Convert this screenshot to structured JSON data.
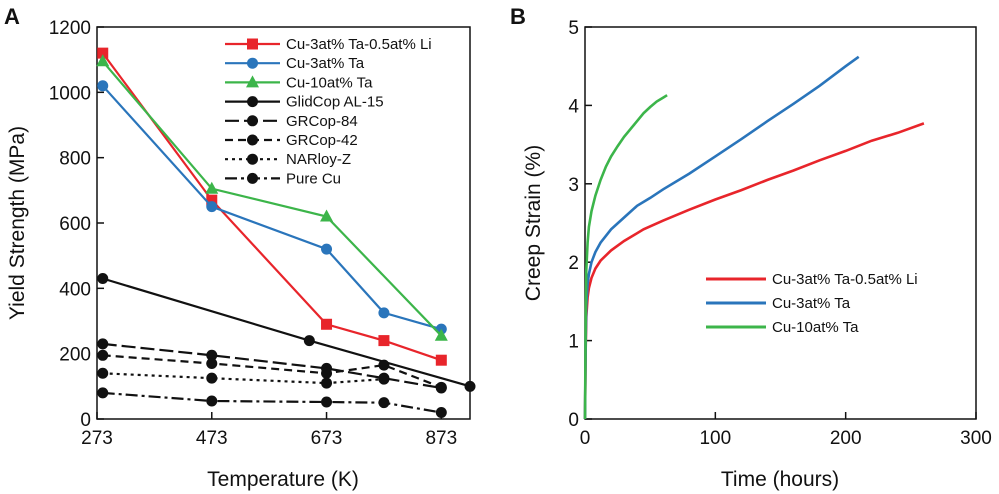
{
  "chart_data": [
    {
      "panel": "A",
      "type": "line",
      "xlabel": "Temperature (K)",
      "ylabel": "Yield Strength (MPa)",
      "xlim": [
        273,
        923
      ],
      "ylim": [
        0,
        1200
      ],
      "xticks": [
        273,
        473,
        673,
        873
      ],
      "yticks": [
        0,
        200,
        400,
        600,
        800,
        1000,
        1200
      ],
      "grid": false,
      "legend_position": "top-right",
      "series": [
        {
          "name": "Cu-3at% Ta-0.5at% Li",
          "color": "#e8252b",
          "marker": "square",
          "dash": "solid",
          "x": [
            283,
            473,
            673,
            773,
            873
          ],
          "y": [
            1120,
            670,
            290,
            240,
            180
          ]
        },
        {
          "name": "Cu-3at% Ta",
          "color": "#2a75bb",
          "marker": "circle",
          "dash": "solid",
          "x": [
            283,
            473,
            673,
            773,
            873
          ],
          "y": [
            1020,
            650,
            520,
            325,
            275
          ]
        },
        {
          "name": "Cu-10at% Ta",
          "color": "#3cb54a",
          "marker": "triangle",
          "dash": "solid",
          "x": [
            283,
            473,
            673,
            873
          ],
          "y": [
            1095,
            705,
            620,
            255
          ]
        },
        {
          "name": "GlidCop AL-15",
          "color": "#111111",
          "marker": "circle",
          "dash": "solid",
          "x": [
            283,
            643,
            923
          ],
          "y": [
            430,
            240,
            100
          ]
        },
        {
          "name": "GRCop-84",
          "color": "#111111",
          "marker": "circle",
          "dash": "longdash",
          "x": [
            283,
            473,
            673,
            773,
            873
          ],
          "y": [
            230,
            195,
            155,
            125,
            95
          ]
        },
        {
          "name": "GRCop-42",
          "color": "#111111",
          "marker": "circle",
          "dash": "dash",
          "x": [
            283,
            473,
            673,
            773,
            873
          ],
          "y": [
            195,
            170,
            140,
            165,
            97
          ]
        },
        {
          "name": "NARloy-Z",
          "color": "#111111",
          "marker": "circle",
          "dash": "dot",
          "x": [
            283,
            473,
            673,
            773
          ],
          "y": [
            140,
            125,
            110,
            122
          ]
        },
        {
          "name": "Pure Cu",
          "color": "#111111",
          "marker": "circle",
          "dash": "dashdot",
          "x": [
            283,
            473,
            673,
            773,
            873
          ],
          "y": [
            80,
            55,
            52,
            50,
            20
          ]
        }
      ]
    },
    {
      "panel": "B",
      "type": "line",
      "xlabel": "Time (hours)",
      "ylabel": "Creep Strain (%)",
      "xlim": [
        0,
        300
      ],
      "ylim": [
        0,
        5
      ],
      "xticks": [
        0,
        100,
        200,
        300
      ],
      "yticks": [
        0,
        1,
        2,
        3,
        4,
        5
      ],
      "grid": false,
      "legend_position": "bottom-right",
      "series": [
        {
          "name": "Cu-3at% Ta-0.5at% Li",
          "color": "#e8252b",
          "x": [
            0,
            0.5,
            1,
            2,
            3,
            5,
            8,
            12,
            20,
            30,
            45,
            60,
            80,
            100,
            120,
            140,
            160,
            180,
            200,
            220,
            240,
            260
          ],
          "y": [
            0,
            0.9,
            1.3,
            1.55,
            1.67,
            1.8,
            1.92,
            2.02,
            2.15,
            2.27,
            2.42,
            2.53,
            2.67,
            2.8,
            2.92,
            3.05,
            3.17,
            3.3,
            3.42,
            3.55,
            3.65,
            3.77
          ]
        },
        {
          "name": "Cu-3at% Ta",
          "color": "#2a75bb",
          "x": [
            0,
            0.5,
            1,
            2,
            3,
            5,
            8,
            12,
            20,
            30,
            40,
            50,
            60,
            80,
            100,
            120,
            140,
            160,
            180,
            200,
            210
          ],
          "y": [
            0,
            1.0,
            1.45,
            1.72,
            1.85,
            2.0,
            2.13,
            2.25,
            2.42,
            2.57,
            2.72,
            2.82,
            2.93,
            3.13,
            3.35,
            3.57,
            3.8,
            4.02,
            4.25,
            4.5,
            4.62
          ]
        },
        {
          "name": "Cu-10at% Ta",
          "color": "#3cb54a",
          "x": [
            0,
            0.5,
            1,
            2,
            3,
            5,
            8,
            12,
            16,
            20,
            25,
            30,
            35,
            40,
            45,
            50,
            55,
            60,
            63
          ],
          "y": [
            0,
            1.3,
            1.9,
            2.25,
            2.45,
            2.65,
            2.85,
            3.05,
            3.22,
            3.35,
            3.48,
            3.6,
            3.7,
            3.8,
            3.9,
            3.98,
            4.05,
            4.1,
            4.13
          ]
        }
      ]
    }
  ]
}
